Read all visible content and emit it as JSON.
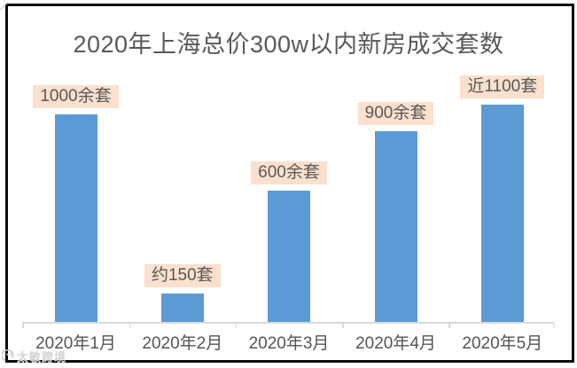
{
  "chart": {
    "title": "2020年上海总价300w以内新房成交套数"
  },
  "chart_data": {
    "type": "bar",
    "title": "2020年上海总价300w以内新房成交套数",
    "categories": [
      "2020年1月",
      "2020年2月",
      "2020年3月",
      "2020年4月",
      "2020年5月"
    ],
    "values": [
      1075,
      150,
      680,
      990,
      1125
    ],
    "value_labels": [
      "1000余套",
      "约150套",
      "600余套",
      "900余套",
      "近1100套"
    ],
    "xlabel": "",
    "ylabel": "",
    "ylim": [
      0,
      1125
    ],
    "grid": false,
    "legend": false,
    "y_axis_shown": false,
    "bar_color": "#5b9bd5",
    "value_label_bg": "#fae0cd",
    "value_label_text_color": "#595959",
    "title_color": "#595959",
    "axis_color": "#d9d9d9",
    "frame_border_color": "#0a0a0a"
  },
  "watermark": {
    "text": "太敏跨境"
  }
}
